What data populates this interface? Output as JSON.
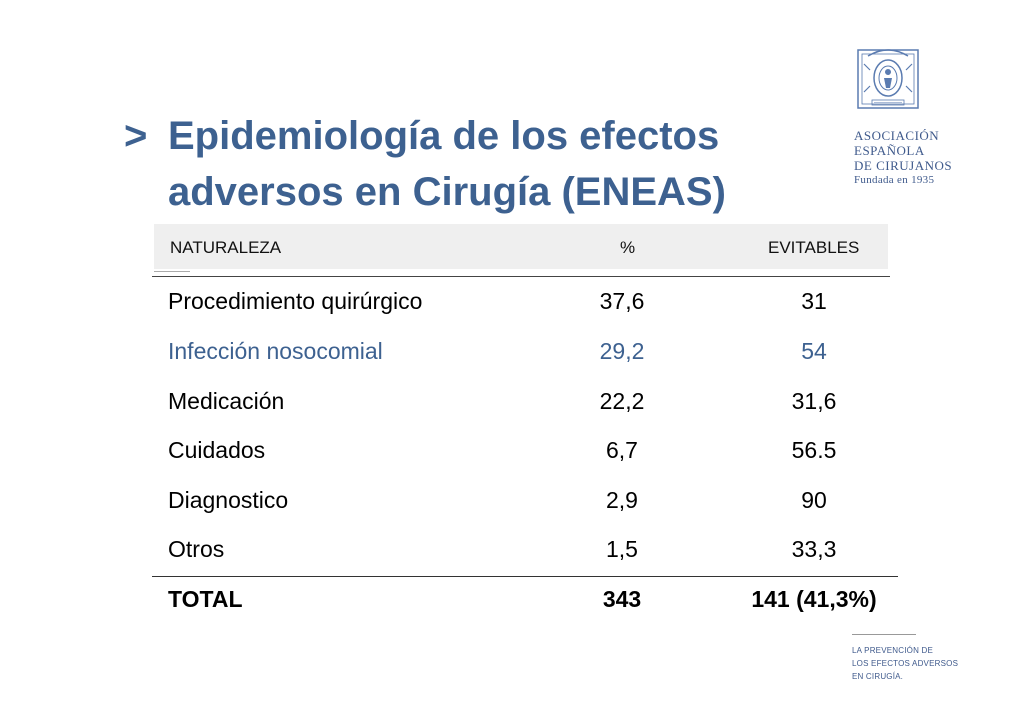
{
  "title": {
    "marker": ">",
    "line1": "Epidemiología de los efectos",
    "line2": "adversos en Cirugía (ENEAS)"
  },
  "logo": {
    "seal_icon": "association-seal-icon",
    "line1": "ASOCIACIÓN",
    "line2": "ESPAÑOLA",
    "line3": "DE CIRUJANOS",
    "line4": "Fundada en 1935"
  },
  "table": {
    "headers": [
      "NATURALEZA",
      "%",
      "EVITABLES"
    ],
    "rows": [
      {
        "naturaleza": "Procedimiento quirúrgico",
        "pct": "37,6",
        "evitables": "31"
      },
      {
        "naturaleza": "Infección nosocomial",
        "pct": "29,2",
        "evitables": "54"
      },
      {
        "naturaleza": "Medicación",
        "pct": "22,2",
        "evitables": "31,6"
      },
      {
        "naturaleza": "Cuidados",
        "pct": "6,7",
        "evitables": "56.5"
      },
      {
        "naturaleza": "Diagnostico",
        "pct": "2,9",
        "evitables": "90"
      },
      {
        "naturaleza": "Otros",
        "pct": "1,5",
        "evitables": "33,3"
      }
    ],
    "total": {
      "naturaleza": "TOTAL",
      "pct": "343",
      "evitables": "141 (41,3%)"
    }
  },
  "footer": {
    "line1": "LA PREVENCIÓN DE",
    "line2": "LOS EFECTOS ADVERSOS",
    "line3": "EN CIRUGÍA."
  },
  "colors": {
    "accent": "#3d6190",
    "logo": "#3f5a8c"
  }
}
